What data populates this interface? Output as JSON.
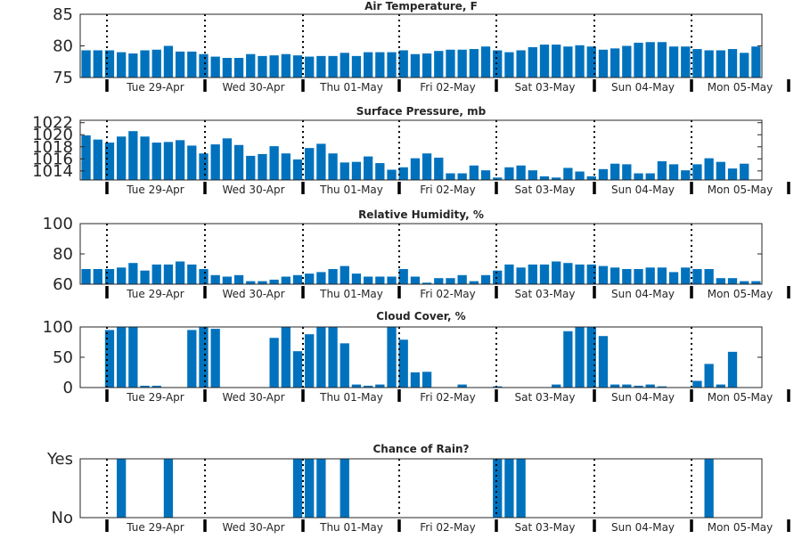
{
  "colors": {
    "bar": "#0072BD",
    "axis": "#262626",
    "divider": "#000000"
  },
  "chart_data": [
    {
      "type": "bar",
      "title": "Air Temperature, F",
      "xlabel": "",
      "ylabel": "",
      "ylim": [
        75,
        85
      ],
      "yticks": [
        "75",
        "80",
        "85"
      ],
      "values": [
        79.3,
        79.3,
        79.3,
        79,
        78.8,
        79.3,
        79.4,
        80,
        79.1,
        79.1,
        78.7,
        78.3,
        78.1,
        78.1,
        78.7,
        78.4,
        78.5,
        78.7,
        78.5,
        78.3,
        78.4,
        78.4,
        78.9,
        78.4,
        79.0,
        79.0,
        79.0,
        79.3,
        78.7,
        78.8,
        79.2,
        79.4,
        79.4,
        79.5,
        79.9,
        79.3,
        79.0,
        79.3,
        79.8,
        80.2,
        80.2,
        79.9,
        80.1,
        79.9,
        79.4,
        79.6,
        80.0,
        80.5,
        80.6,
        80.6,
        79.9,
        79.9,
        79.5,
        79.3,
        79.3,
        79.5,
        78.9,
        79.9
      ],
      "grid": false
    },
    {
      "type": "bar",
      "title": "Surface Pressure, mb",
      "xlabel": "",
      "ylabel": "",
      "ylim": [
        1012.5,
        1022.4
      ],
      "yticks": [
        "1014",
        "1016",
        "1018",
        "1020",
        "1022"
      ],
      "values": [
        1019.9,
        1019.2,
        1018.7,
        1019.7,
        1020.6,
        1019.7,
        1018.7,
        1018.8,
        1019.1,
        1018.2,
        1016.9,
        1018.4,
        1019.4,
        1018.3,
        1016.5,
        1016.8,
        1018.1,
        1016.9,
        1015.9,
        1017.8,
        1018.5,
        1016.9,
        1015.4,
        1015.5,
        1016.4,
        1015.3,
        1014.2,
        1014.6,
        1016.1,
        1016.9,
        1016.2,
        1013.6,
        1013.6,
        1014.9,
        1014.1,
        1012.9,
        1014.6,
        1014.9,
        1014.1,
        1013.1,
        1012.9,
        1014.5,
        1013.9,
        1013.1,
        1014.3,
        1015.2,
        1015.1,
        1013.6,
        1013.6,
        1015.6,
        1015.1,
        1014.1,
        1015.1,
        1016.1,
        1015.5,
        1014.4,
        1015.2,
        1012.5
      ],
      "grid": false
    },
    {
      "type": "bar",
      "title": "Relative Humidity, %",
      "xlabel": "",
      "ylabel": "",
      "ylim": [
        60,
        100
      ],
      "yticks": [
        "60",
        "80",
        "100"
      ],
      "values": [
        70,
        70,
        70,
        71,
        74,
        69,
        73,
        73,
        75,
        73,
        70,
        66,
        65,
        66,
        62,
        62,
        63,
        65,
        66,
        67,
        68,
        70,
        72,
        67,
        65,
        65,
        65,
        70,
        65,
        61,
        64,
        64,
        66,
        62,
        66,
        69,
        73,
        71,
        73,
        73,
        75,
        74,
        73,
        73,
        72,
        71,
        70,
        70,
        71,
        71,
        68,
        71,
        70,
        70,
        64,
        64,
        62,
        62
      ],
      "grid": false
    },
    {
      "type": "bar",
      "title": "Cloud Cover, %",
      "xlabel": "",
      "ylabel": "",
      "ylim": [
        0,
        100
      ],
      "yticks": [
        "0",
        "50",
        "100"
      ],
      "values": [
        0,
        0,
        95,
        100,
        100,
        3,
        3,
        0,
        0,
        95,
        100,
        97,
        0,
        0,
        0,
        0,
        82,
        100,
        60,
        88,
        100,
        100,
        73,
        5,
        3,
        5,
        100,
        79,
        25,
        26,
        0,
        0,
        5,
        0,
        0,
        2,
        0,
        0,
        0,
        0,
        5,
        93,
        100,
        100,
        85,
        5,
        5,
        3,
        5,
        2,
        0,
        0,
        11,
        39,
        5,
        59,
        0,
        0
      ],
      "grid": false
    },
    {
      "type": "bar",
      "title": "Chance of Rain?",
      "xlabel": "",
      "ylabel": "",
      "ylim": [
        0,
        1
      ],
      "yticks": [
        "No",
        "Yes"
      ],
      "values": [
        0,
        0,
        0,
        1,
        0,
        0,
        0,
        1,
        0,
        0,
        0,
        0,
        0,
        0,
        0,
        0,
        0,
        0,
        1,
        1,
        1,
        0,
        1,
        0,
        0,
        0,
        0,
        0,
        0,
        0,
        0,
        0,
        0,
        0,
        0,
        1,
        1,
        1,
        0,
        0,
        0,
        0,
        0,
        0,
        0,
        0,
        0,
        0,
        0,
        0,
        0,
        0,
        0,
        1,
        0,
        0,
        0,
        0
      ],
      "grid": false
    }
  ],
  "x_axis": {
    "categories": [
      "Tue 29-Apr",
      "Wed 30-Apr",
      "Thu 01-May",
      "Fri 02-May",
      "Sat 03-May",
      "Sun 04-May",
      "Mon 05-May"
    ]
  }
}
